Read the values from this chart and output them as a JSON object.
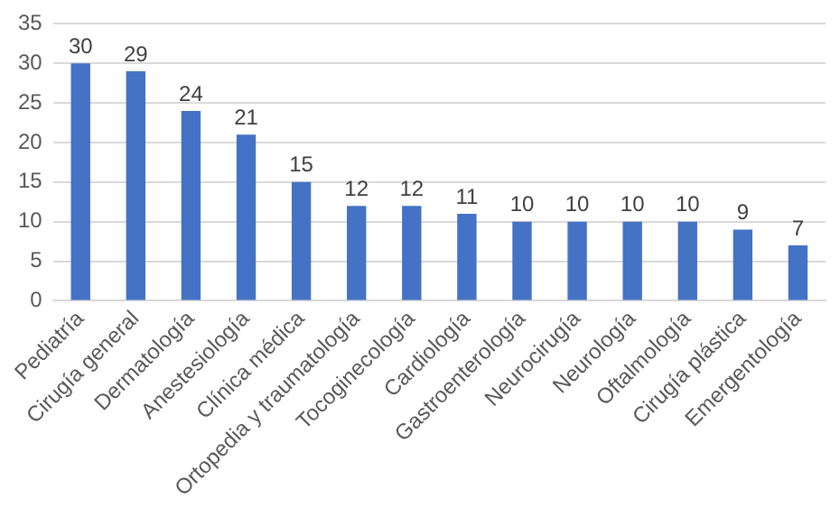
{
  "chart_data": {
    "type": "bar",
    "categories": [
      "Pediatría",
      "Cirugía general",
      "Dermatología",
      "Anestesiología",
      "Clínica médica",
      "Ortopedia y traumatología",
      "Tocoginecología",
      "Cardiología",
      "Gastroenterología",
      "Neurocirugía",
      "Neurología",
      "Oftalmología",
      "Cirugía plástica",
      "Emergentología"
    ],
    "values": [
      30,
      29,
      24,
      21,
      15,
      12,
      12,
      11,
      10,
      10,
      10,
      10,
      9,
      7
    ],
    "color": "#4472c4",
    "ylim": [
      0,
      35
    ],
    "yticks": [
      0,
      5,
      10,
      15,
      20,
      25,
      30,
      35
    ],
    "grid": "y",
    "data_labels": true
  }
}
